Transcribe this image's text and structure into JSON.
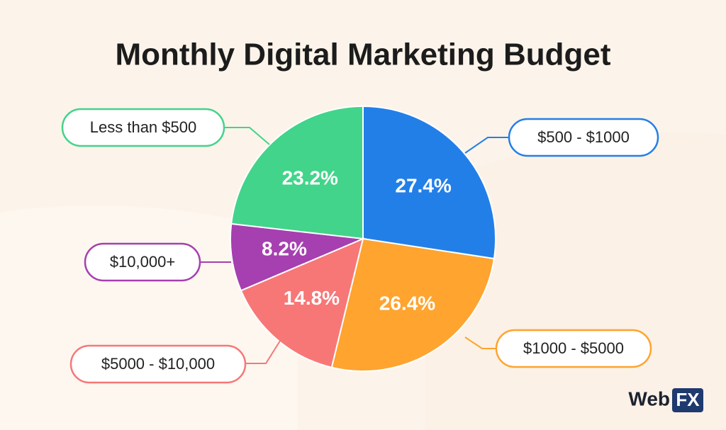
{
  "chart_data": {
    "type": "pie",
    "title": "Monthly Digital Marketing Budget",
    "categories": [
      "$500 - $1000",
      "$1000 - $5000",
      "$5000 - $10,000",
      "$10,000+",
      "Less than $500"
    ],
    "values": [
      27.4,
      26.4,
      14.8,
      8.2,
      23.2
    ],
    "value_labels": [
      "27.4%",
      "26.4%",
      "14.8%",
      "8.2%",
      "23.2%"
    ],
    "colors": [
      "#237fe8",
      "#fea42f",
      "#f77777",
      "#a63fb0",
      "#42d48a"
    ],
    "brand": [
      "Web",
      "FX"
    ]
  }
}
